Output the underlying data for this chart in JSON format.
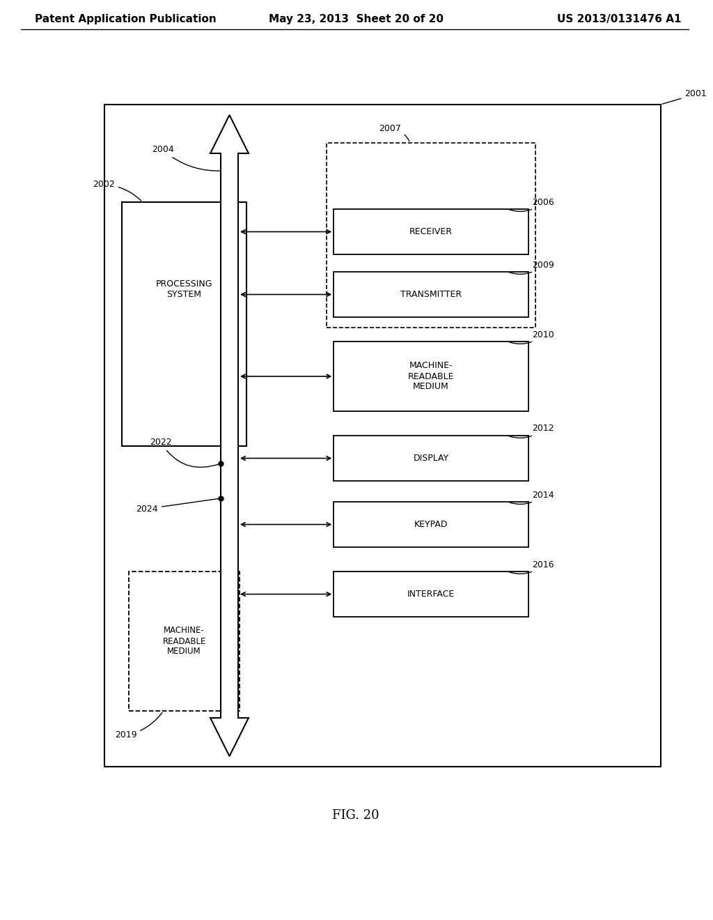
{
  "header_left": "Patent Application Publication",
  "header_mid": "May 23, 2013  Sheet 20 of 20",
  "header_right": "US 2013/0131476 A1",
  "fig_label": "FIG. 20",
  "outer_box_label": "2001",
  "proc_box_label": "2002",
  "proc_box_text": "PROCESSING\nSYSTEM",
  "mrm_inner_label": "2019",
  "mrm_inner_text": "MACHINE-\nREADABLE\nMEDIUM",
  "bus_label": "2004",
  "node2022_label": "2022",
  "node2024_label": "2024",
  "dashed_group_label": "2007",
  "receiver_label": "2006",
  "receiver_text": "RECEIVER",
  "transmitter_label": "2009",
  "transmitter_text": "TRANSMITTER",
  "mrm_right_label": "2010",
  "mrm_right_text": "MACHINE-\nREADABLE\nMEDIUM",
  "display_label": "2012",
  "display_text": "DISPLAY",
  "keypad_label": "2014",
  "keypad_text": "KEYPAD",
  "interface_label": "2016",
  "interface_text": "INTERFACE",
  "bg_color": "#ffffff",
  "line_color": "#000000",
  "font_size_header": 11,
  "font_size_labels": 9,
  "font_size_box": 9,
  "font_size_fig": 13
}
